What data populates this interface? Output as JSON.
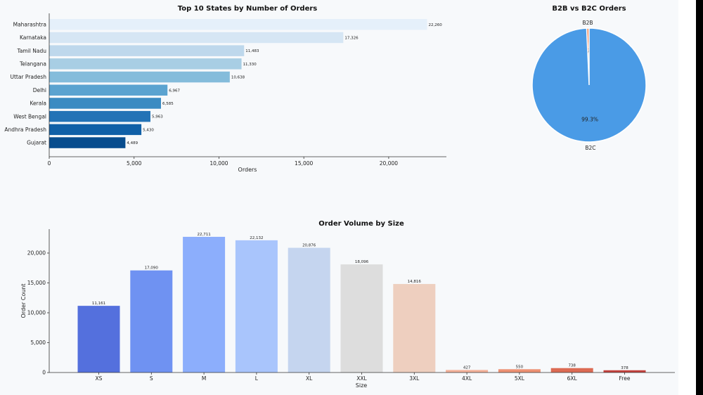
{
  "chart_data": [
    {
      "type": "bar",
      "orientation": "horizontal",
      "title": "Top 10 States by Number of Orders",
      "xlabel": "Orders",
      "ylabel": "",
      "categories": [
        "Maharashtra",
        "Karnataka",
        "Tamil Nadu",
        "Telangana",
        "Uttar Pradesh",
        "Delhi",
        "Kerala",
        "West Bengal",
        "Andhra Pradesh",
        "Gujarat"
      ],
      "values": [
        22260,
        17326,
        11483,
        11330,
        10638,
        6967,
        6585,
        5963,
        5430,
        4489
      ],
      "value_labels": [
        "22,260",
        "17,326",
        "11,483",
        "11,330",
        "10,638",
        "6,967",
        "6,585",
        "5,963",
        "5,430",
        "4,489"
      ],
      "xlim": [
        0,
        23400
      ],
      "ticks": [
        0,
        5000,
        10000,
        15000,
        20000
      ],
      "tick_labels": [
        "0",
        "5,000",
        "10,000",
        "15,000",
        "20,000"
      ],
      "colors": [
        "#e5f0fa",
        "#d6e6f4",
        "#bed8ec",
        "#a8cee4",
        "#84bcdb",
        "#5ba3d0",
        "#3b8bc2",
        "#2373b6",
        "#1060a7",
        "#084d8e"
      ],
      "grid": false
    },
    {
      "type": "pie",
      "title": "B2B vs B2C Orders",
      "categories": [
        "B2B",
        "B2C"
      ],
      "values": [
        0.7,
        99.3
      ],
      "value_labels": [
        "0.7%",
        "99.3%"
      ],
      "colors": [
        "#f08a5d",
        "#4a9be6"
      ]
    },
    {
      "type": "bar",
      "orientation": "vertical",
      "title": "Order Volume by Size",
      "xlabel": "Size",
      "ylabel": "Order Count",
      "categories": [
        "XS",
        "S",
        "M",
        "L",
        "XL",
        "XXL",
        "3XL",
        "4XL",
        "5XL",
        "6XL",
        "Free"
      ],
      "values": [
        11161,
        17090,
        22711,
        22132,
        20876,
        18096,
        14816,
        427,
        550,
        738,
        378
      ],
      "value_labels": [
        "11,161",
        "17,090",
        "22,711",
        "22,132",
        "20,876",
        "18,096",
        "14,816",
        "427",
        "550",
        "738",
        "378"
      ],
      "ylim": [
        0,
        24000
      ],
      "ticks": [
        0,
        5000,
        10000,
        15000,
        20000
      ],
      "tick_labels": [
        "0",
        "5,000",
        "10,000",
        "15,000",
        "20,000"
      ],
      "colors": [
        "#5470dd",
        "#6f92f2",
        "#8caefc",
        "#a9c5fc",
        "#c5d5ef",
        "#dddddd",
        "#eecfbf",
        "#f4b29a",
        "#ed9173",
        "#dc6b54",
        "#c4423d"
      ],
      "grid": false
    }
  ]
}
